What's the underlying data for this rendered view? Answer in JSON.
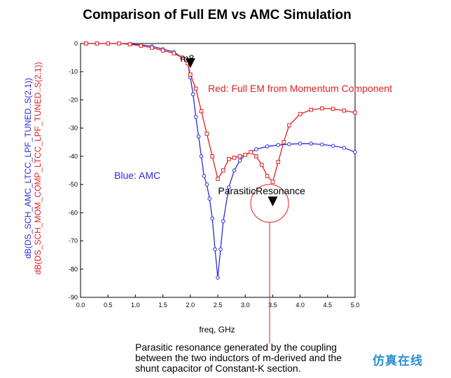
{
  "chart_data": {
    "type": "line",
    "title": "Comparison of Full EM vs AMC Simulation",
    "xlabel": "freq, GHz",
    "ylabel_blue": "dB(DS_SCH_AMC_LTCC_LPF_TUNED..S(2,1))",
    "ylabel_red": "dB(DS_SCH_MOM_COMP_LTCC_LPF_TUNED..S(2,1))",
    "xlim": [
      0,
      5
    ],
    "ylim": [
      -90,
      0
    ],
    "x_ticks": [
      "0.0",
      "0.5",
      "1.0",
      "1.5",
      "2.0",
      "2.5",
      "3.0",
      "3.5",
      "4.0",
      "4.5",
      "5.0"
    ],
    "y_ticks": [
      "0",
      "-10",
      "-20",
      "-30",
      "-40",
      "-50",
      "-60",
      "-70",
      "-80",
      "-90"
    ],
    "series": [
      {
        "name": "Blue: AMC",
        "color": "#2b2bdc",
        "marker": "circle",
        "x": [
          0.1,
          0.3,
          0.5,
          0.7,
          0.9,
          1.1,
          1.3,
          1.5,
          1.7,
          1.85,
          1.95,
          2.0,
          2.05,
          2.1,
          2.15,
          2.2,
          2.25,
          2.3,
          2.35,
          2.4,
          2.45,
          2.5,
          2.55,
          2.6,
          2.7,
          2.8,
          2.9,
          3.0,
          3.2,
          3.4,
          3.6,
          3.8,
          4.0,
          4.2,
          4.4,
          4.6,
          4.8,
          5.0
        ],
        "y": [
          0,
          0,
          0,
          0,
          -0.2,
          -0.5,
          -1,
          -2,
          -3,
          -5,
          -7,
          -12,
          -18,
          -26,
          -33,
          -40,
          -47,
          -50,
          -55,
          -62,
          -73,
          -83,
          -73,
          -63,
          -51,
          -45,
          -41.5,
          -39.5,
          -37.5,
          -36.5,
          -36,
          -35.7,
          -35.5,
          -35.5,
          -35.8,
          -36.3,
          -37,
          -38.5
        ]
      },
      {
        "name": "Red: Full EM from Momentum Component",
        "color": "#e02020",
        "marker": "square",
        "x": [
          0.1,
          0.3,
          0.5,
          0.7,
          0.9,
          1.1,
          1.3,
          1.5,
          1.7,
          1.85,
          1.95,
          2.0,
          2.1,
          2.2,
          2.3,
          2.4,
          2.5,
          2.6,
          2.7,
          2.8,
          2.9,
          3.0,
          3.1,
          3.2,
          3.3,
          3.4,
          3.5,
          3.6,
          3.7,
          3.8,
          4.0,
          4.2,
          4.4,
          4.6,
          4.8,
          5.0
        ],
        "y": [
          0,
          0,
          0,
          0,
          -0.3,
          -0.8,
          -1.5,
          -2.5,
          -3.5,
          -5,
          -7,
          -11,
          -16,
          -24,
          -32,
          -40,
          -48,
          -45,
          -41,
          -40.5,
          -40,
          -39.5,
          -38.5,
          -40,
          -43,
          -47,
          -49,
          -42,
          -35,
          -29,
          -25,
          -23.5,
          -23,
          -23.2,
          -23.8,
          -24.5
        ]
      }
    ],
    "markers": [
      {
        "label": "m8",
        "x": 2.0,
        "y": -7
      },
      {
        "label": "ParasiticResonance",
        "x": 3.5,
        "y": -56
      }
    ],
    "annotations": [
      "Red: Full EM from Momentum Component",
      "Blue: AMC"
    ],
    "grid": false,
    "legend": "none"
  },
  "caption": {
    "line1": "Parasitic resonance generated by the coupling",
    "line2": "between the two inductors of m-derived and the",
    "line3": "shunt capacitor of Constant-K section."
  },
  "watermark": "仿真在线"
}
